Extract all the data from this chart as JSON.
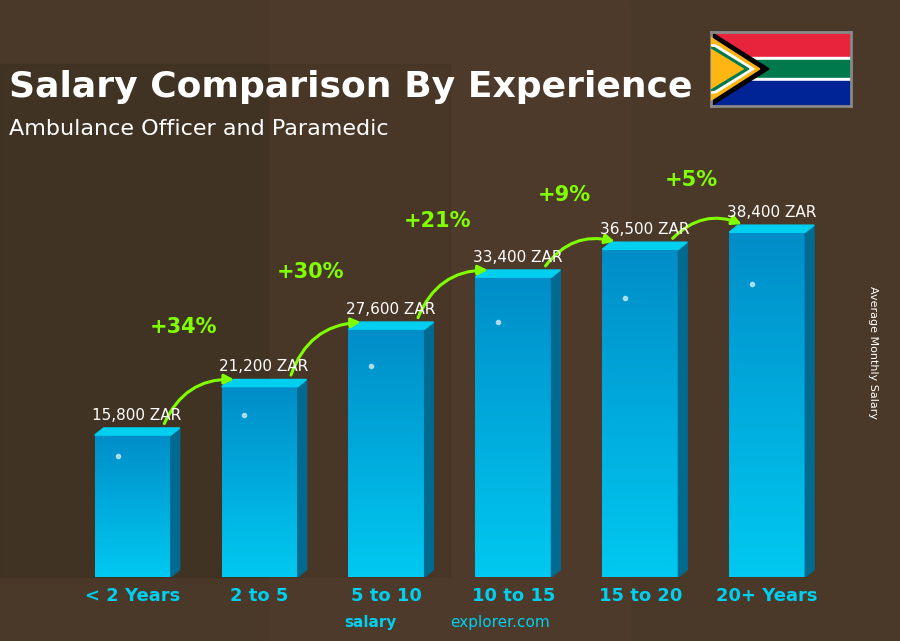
{
  "title": "Salary Comparison By Experience",
  "subtitle": "Ambulance Officer and Paramedic",
  "categories": [
    "< 2 Years",
    "2 to 5",
    "5 to 10",
    "10 to 15",
    "15 to 20",
    "20+ Years"
  ],
  "values": [
    15800,
    21200,
    27600,
    33400,
    36500,
    38400
  ],
  "labels": [
    "15,800 ZAR",
    "21,200 ZAR",
    "27,600 ZAR",
    "33,400 ZAR",
    "36,500 ZAR",
    "38,400 ZAR"
  ],
  "pct_changes": [
    "+34%",
    "+30%",
    "+21%",
    "+9%",
    "+5%"
  ],
  "bar_color_top": "#00CFEF",
  "bar_color_bottom": "#0090C0",
  "bar_right_color": "#007BA0",
  "bar_top_color": "#00E5FF",
  "pct_color": "#7FFF00",
  "label_color": "#FFFFFF",
  "xlabel_color": "#00CFEF",
  "bg_color": "#3D3020",
  "ylabel": "Average Monthly Salary",
  "ylim": [
    0,
    50000
  ],
  "title_fontsize": 26,
  "subtitle_fontsize": 16,
  "label_fontsize": 11,
  "pct_fontsize": 15
}
